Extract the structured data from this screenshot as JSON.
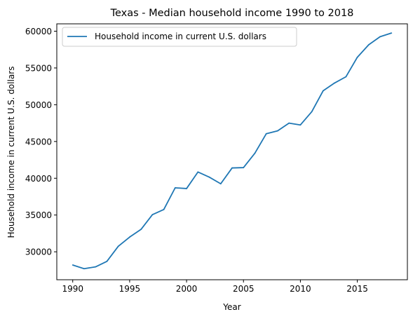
{
  "chart_data": {
    "type": "line",
    "title": "Texas - Median household income 1990 to 2018",
    "xlabel": "Year",
    "ylabel": "Household income in current U.S. dollars",
    "legend_position": "top-left",
    "grid": false,
    "line_color": "#1f77b4",
    "xlim": [
      1988.6,
      2019.4
    ],
    "ylim": [
      26200,
      61000
    ],
    "xticks": [
      "1990",
      "1995",
      "2000",
      "2005",
      "2010",
      "2015"
    ],
    "yticks": [
      "30000",
      "35000",
      "40000",
      "45000",
      "50000",
      "55000",
      "60000"
    ],
    "series": [
      {
        "name": "Household income in current U.S. dollars",
        "x": [
          1990,
          1991,
          1992,
          1993,
          1994,
          1995,
          1996,
          1997,
          1998,
          1999,
          2000,
          2001,
          2002,
          2003,
          2004,
          2005,
          2006,
          2007,
          2008,
          2009,
          2010,
          2011,
          2012,
          2013,
          2014,
          2015,
          2016,
          2017,
          2018
        ],
        "values": [
          28200,
          27700,
          27950,
          28700,
          30750,
          32000,
          33050,
          35050,
          35750,
          38700,
          38600,
          40850,
          40150,
          39250,
          41400,
          41450,
          43400,
          46050,
          46450,
          47500,
          47250,
          49050,
          51900,
          52950,
          53800,
          56450,
          58150,
          59250,
          59750
        ]
      }
    ]
  }
}
